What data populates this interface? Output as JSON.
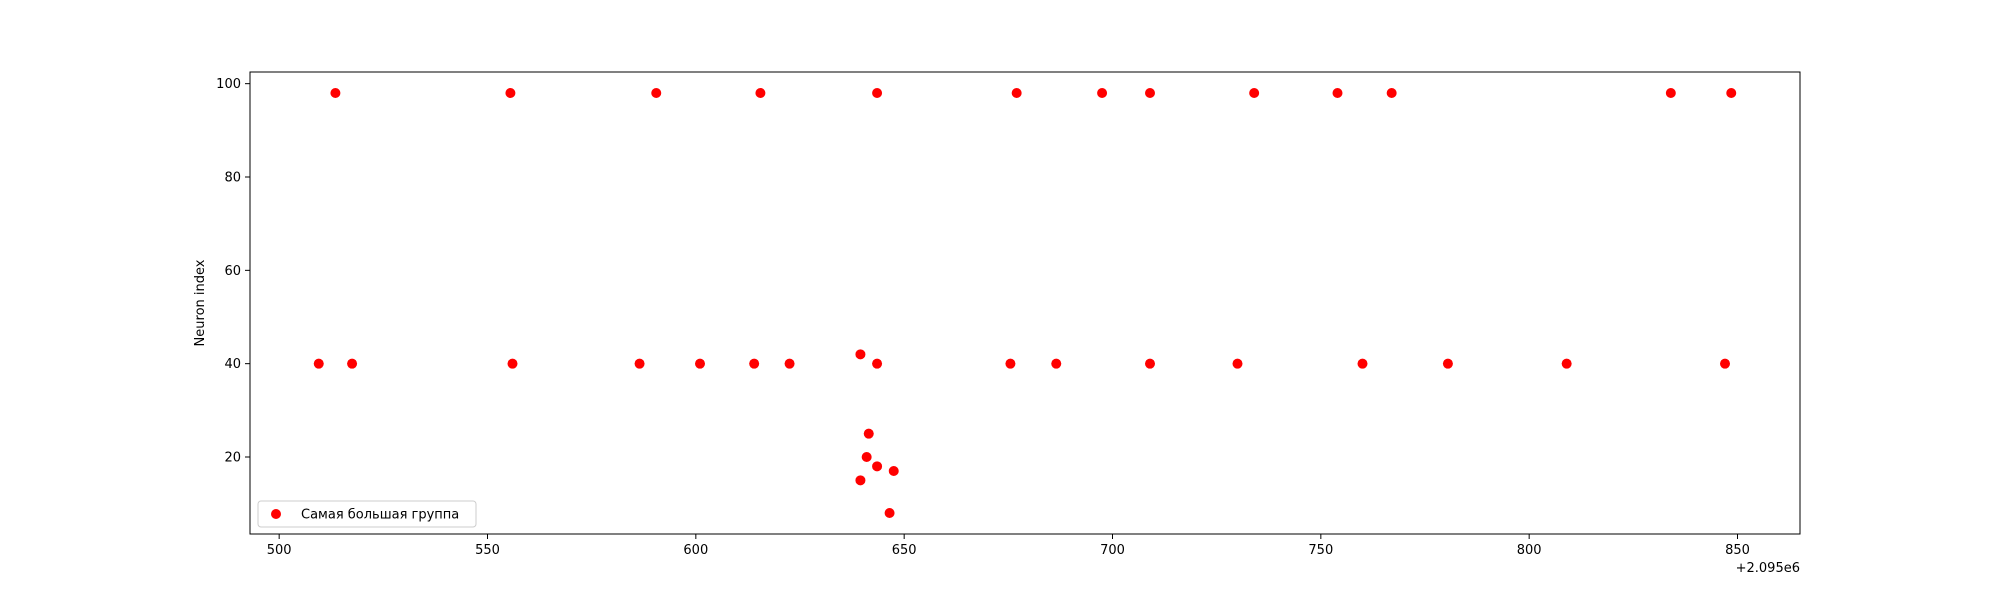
{
  "chart_data": {
    "type": "scatter",
    "title": "",
    "xlabel": "",
    "ylabel": "Neuron index",
    "x_offset_label": "+2.095e6",
    "xlim": [
      2095493,
      2095865
    ],
    "ylim": [
      3.5,
      102.5
    ],
    "xticks": [
      500,
      550,
      600,
      650,
      700,
      750,
      800,
      850
    ],
    "yticks": [
      20,
      40,
      60,
      80,
      100
    ],
    "grid": false,
    "legend_position": "lower-left",
    "series": [
      {
        "name": "Самая большая группа",
        "color": "#ff0000",
        "points": [
          [
            2095513.5,
            98
          ],
          [
            2095555.5,
            98
          ],
          [
            2095590.5,
            98
          ],
          [
            2095615.5,
            98
          ],
          [
            2095643.5,
            98
          ],
          [
            2095677.0,
            98
          ],
          [
            2095697.5,
            98
          ],
          [
            2095709.0,
            98
          ],
          [
            2095734.0,
            98
          ],
          [
            2095754.0,
            98
          ],
          [
            2095767.0,
            98
          ],
          [
            2095834.0,
            98
          ],
          [
            2095848.5,
            98
          ],
          [
            2095509.5,
            40
          ],
          [
            2095517.5,
            40
          ],
          [
            2095556.0,
            40
          ],
          [
            2095586.5,
            40
          ],
          [
            2095601.0,
            40
          ],
          [
            2095614.0,
            40
          ],
          [
            2095622.5,
            40
          ],
          [
            2095643.5,
            40
          ],
          [
            2095675.5,
            40
          ],
          [
            2095686.5,
            40
          ],
          [
            2095709.0,
            40
          ],
          [
            2095730.0,
            40
          ],
          [
            2095760.0,
            40
          ],
          [
            2095780.5,
            40
          ],
          [
            2095809.0,
            40
          ],
          [
            2095847.0,
            40
          ],
          [
            2095639.5,
            42
          ],
          [
            2095641.5,
            25
          ],
          [
            2095641.0,
            20
          ],
          [
            2095643.5,
            18
          ],
          [
            2095647.5,
            17
          ],
          [
            2095639.5,
            15
          ],
          [
            2095646.5,
            8
          ]
        ]
      }
    ]
  }
}
